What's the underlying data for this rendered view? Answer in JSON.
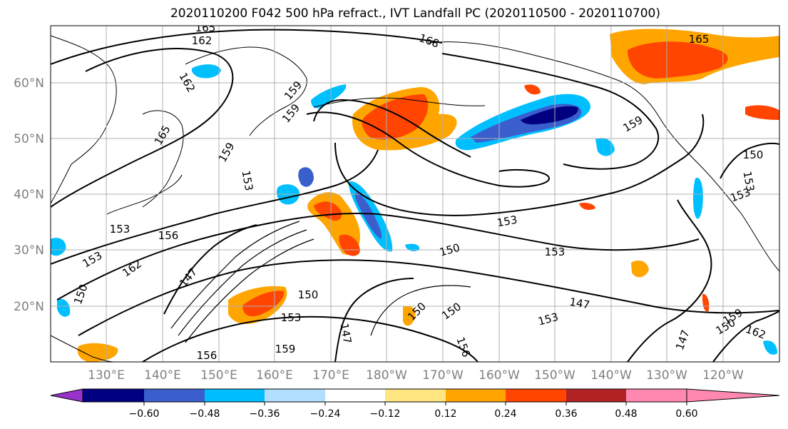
{
  "title": "2020110200 F042 500 hPa refract., IVT Landfall PC (2020110500 - 2020110700)",
  "lat_labels": [
    "60°N",
    "50°N",
    "40°N",
    "30°N",
    "20°N"
  ],
  "lon_labels": [
    "130°E",
    "140°E",
    "150°E",
    "160°E",
    "170°E",
    "180°W",
    "170°W",
    "160°W",
    "150°W",
    "140°W",
    "130°W",
    "120°W"
  ],
  "colorbar": {
    "tick_labels": [
      "−0.60",
      "−0.48",
      "−0.36",
      "−0.24",
      "−0.12",
      "0.12",
      "0.24",
      "0.36",
      "0.48",
      "0.60"
    ],
    "colors": [
      "#9932cc",
      "#000080",
      "#3a5fcd",
      "#00bfff",
      "#b2dfff",
      "#ffffff",
      "#ffe680",
      "#ffa500",
      "#ff4500",
      "#b22222",
      "#ff88b0"
    ]
  },
  "contour_labels": [
    "165",
    "162",
    "162",
    "168",
    "159",
    "159",
    "165",
    "159",
    "153",
    "165",
    "159",
    "150",
    "153",
    "153",
    "156",
    "153",
    "162",
    "147",
    "150",
    "150",
    "153",
    "159",
    "156",
    "147",
    "153",
    "150",
    "150",
    "147",
    "153",
    "150",
    "156",
    "153",
    "147",
    "159",
    "162",
    "150",
    "153"
  ],
  "legend_colors": {
    "map_border": "#000000",
    "gridline": "#b0b0b0",
    "contour": "#000000"
  }
}
